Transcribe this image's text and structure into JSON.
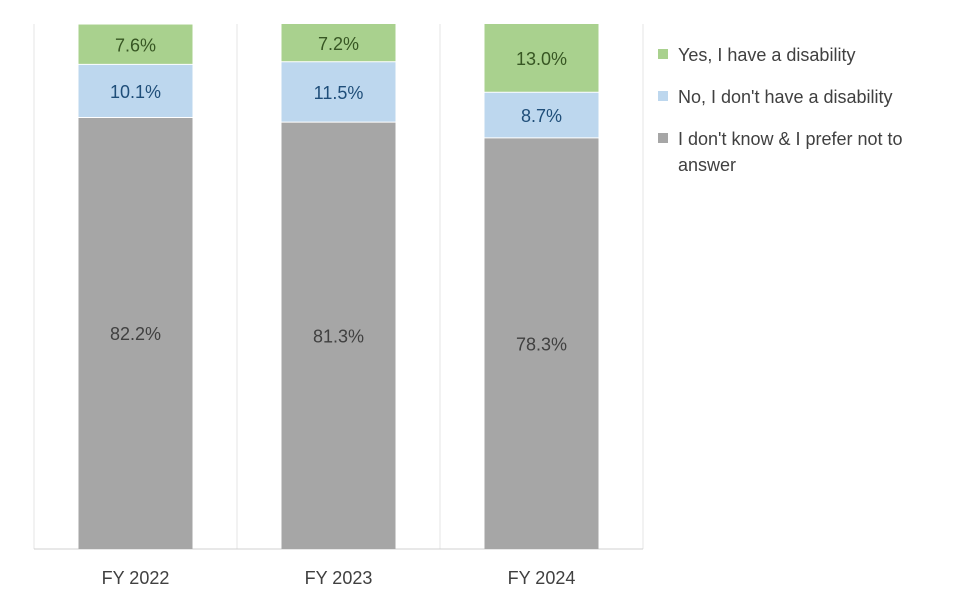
{
  "chart_data": {
    "type": "bar",
    "stacked": true,
    "categories": [
      "FY 2022",
      "FY 2023",
      "FY 2024"
    ],
    "series": [
      {
        "name": "I don't know & I prefer not to answer",
        "color": "#a6a6a6",
        "label_color": "#404040",
        "values": [
          82.2,
          81.3,
          78.3
        ],
        "labels": [
          "82.2%",
          "81.3%",
          "78.3%"
        ]
      },
      {
        "name": "No, I don't have a disability",
        "color": "#bdd7ee",
        "label_color": "#1f4e79",
        "values": [
          10.1,
          11.5,
          8.7
        ],
        "labels": [
          "10.1%",
          "11.5%",
          "8.7%"
        ]
      },
      {
        "name": "Yes, I have a disability",
        "color": "#a9d18e",
        "label_color": "#375623",
        "values": [
          7.6,
          7.2,
          13.0
        ],
        "labels": [
          "7.6%",
          "7.2%",
          "13.0%"
        ]
      }
    ],
    "ylim": [
      0,
      100
    ],
    "grid": false,
    "legend_position": "right",
    "legend_order": [
      "Yes, I have a disability",
      "No, I don't have a disability",
      "I don't know & I prefer not to answer"
    ]
  }
}
